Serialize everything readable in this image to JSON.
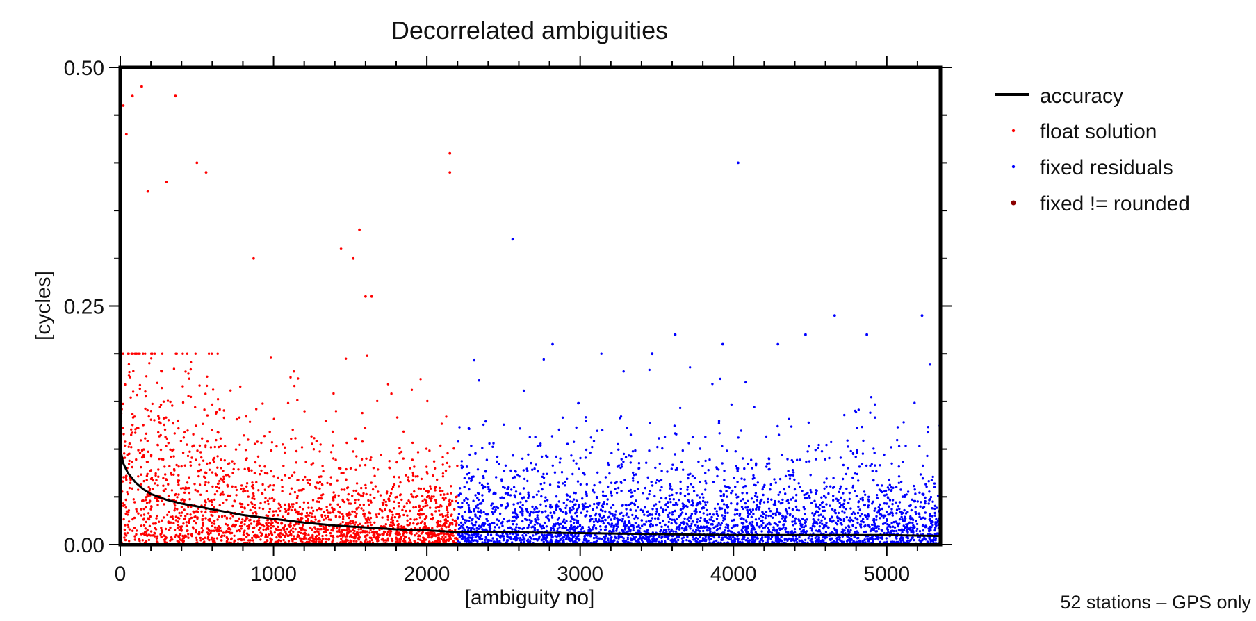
{
  "chart_data": {
    "type": "scatter",
    "title": "Decorrelated ambiguities",
    "xlabel": "[ambiguity no]",
    "ylabel": "[cycles]",
    "xlim": [
      0,
      5350
    ],
    "ylim": [
      0,
      0.5
    ],
    "x_ticks": [
      0,
      1000,
      2000,
      3000,
      4000,
      5000
    ],
    "x_tick_labels": [
      "0",
      "1000",
      "2000",
      "3000",
      "4000",
      "5000"
    ],
    "y_ticks": [
      0,
      0.25,
      0.5
    ],
    "y_tick_labels": [
      "0.00",
      "0.25",
      "0.50"
    ],
    "legend_position": "outside-right-top",
    "legend": [
      {
        "label": "accuracy",
        "marker": "line",
        "color": "#000000"
      },
      {
        "label": "float solution",
        "marker": "dot",
        "color": "#ff0000"
      },
      {
        "label": "fixed residuals",
        "marker": "dot",
        "color": "#0000ff"
      },
      {
        "label": "fixed != rounded",
        "marker": "dot",
        "color": "#8b0000"
      }
    ],
    "footnote": "52 stations – GPS only",
    "series": [
      {
        "name": "accuracy",
        "kind": "line",
        "color": "#000000",
        "points": [
          [
            0,
            0.1
          ],
          [
            20,
            0.085
          ],
          [
            50,
            0.075
          ],
          [
            100,
            0.065
          ],
          [
            150,
            0.058
          ],
          [
            200,
            0.053
          ],
          [
            300,
            0.047
          ],
          [
            400,
            0.043
          ],
          [
            500,
            0.04
          ],
          [
            600,
            0.037
          ],
          [
            700,
            0.034
          ],
          [
            800,
            0.031
          ],
          [
            900,
            0.029
          ],
          [
            1000,
            0.027
          ],
          [
            1200,
            0.023
          ],
          [
            1400,
            0.02
          ],
          [
            1600,
            0.018
          ],
          [
            1800,
            0.016
          ],
          [
            2000,
            0.015
          ],
          [
            2200,
            0.013
          ],
          [
            2500,
            0.013
          ],
          [
            3000,
            0.012
          ],
          [
            3500,
            0.011
          ],
          [
            4000,
            0.01
          ],
          [
            4500,
            0.01
          ],
          [
            5000,
            0.01
          ],
          [
            5350,
            0.009
          ]
        ]
      },
      {
        "name": "float solution",
        "kind": "scatter",
        "color": "#ff0000",
        "count": 2200,
        "x_range": [
          0,
          2200
        ],
        "outliers": [
          [
            20,
            0.46
          ],
          [
            40,
            0.43
          ],
          [
            80,
            0.47
          ],
          [
            140,
            0.48
          ],
          [
            360,
            0.47
          ],
          [
            500,
            0.4
          ],
          [
            560,
            0.39
          ],
          [
            300,
            0.38
          ],
          [
            180,
            0.37
          ],
          [
            1560,
            0.33
          ],
          [
            1440,
            0.31
          ],
          [
            1520,
            0.3
          ],
          [
            870,
            0.3
          ],
          [
            2150,
            0.41
          ],
          [
            2150,
            0.39
          ],
          [
            1640,
            0.26
          ],
          [
            1600,
            0.26
          ]
        ]
      },
      {
        "name": "fixed residuals",
        "kind": "scatter",
        "color": "#0000ff",
        "count": 3150,
        "x_range": [
          2200,
          5350
        ],
        "outliers": [
          [
            4030,
            0.4
          ],
          [
            2560,
            0.32
          ],
          [
            4660,
            0.24
          ],
          [
            5230,
            0.24
          ],
          [
            3620,
            0.22
          ],
          [
            4870,
            0.22
          ],
          [
            4470,
            0.22
          ],
          [
            2820,
            0.21
          ],
          [
            3930,
            0.21
          ],
          [
            4290,
            0.21
          ],
          [
            3470,
            0.2
          ]
        ]
      },
      {
        "name": "fixed != rounded",
        "kind": "scatter",
        "color": "#8b0000",
        "count": 0
      }
    ]
  }
}
